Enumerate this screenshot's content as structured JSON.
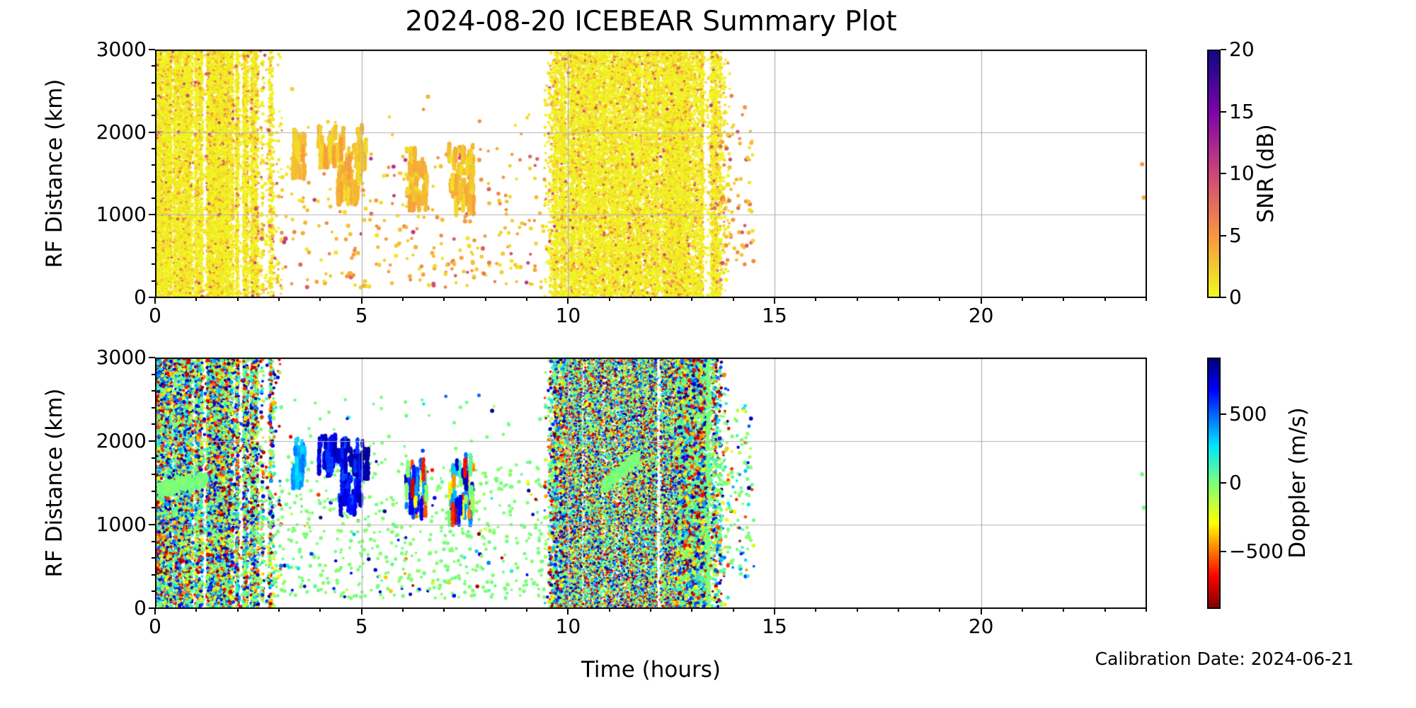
{
  "figure": {
    "title": "2024-08-20 ICEBEAR Summary Plot",
    "xlabel": "Time (hours)",
    "footnote": "Calibration Date: 2024-06-21",
    "background": "#ffffff",
    "grid_color": "#b0b0b0",
    "axis_color": "#000000"
  },
  "chart_data": {
    "type": "scatter",
    "render_seed": 1337,
    "panels": [
      {
        "id": "snr",
        "ylabel": "RF Distance (km)",
        "xlim": [
          0,
          24
        ],
        "ylim": [
          0,
          3000
        ],
        "xticks": [
          {
            "v": 0,
            "label": "0"
          },
          {
            "v": 5,
            "label": "5"
          },
          {
            "v": 10,
            "label": "10"
          },
          {
            "v": 15,
            "label": "15"
          },
          {
            "v": 20,
            "label": "20"
          }
        ],
        "yticks": [
          {
            "v": 0,
            "label": "0"
          },
          {
            "v": 1000,
            "label": "1000"
          },
          {
            "v": 2000,
            "label": "2000"
          },
          {
            "v": 3000,
            "label": "3000"
          }
        ],
        "x_minor_step": 1,
        "y_minor_step": 200,
        "grid_x": [
          5,
          10,
          15,
          20
        ],
        "grid_y": [
          1000,
          2000
        ],
        "colorbar": {
          "label": "SNR (dB)",
          "vmin": 0,
          "vmax": 20,
          "ticks": [
            {
              "v": 0,
              "label": "0"
            },
            {
              "v": 5,
              "label": "5"
            },
            {
              "v": 10,
              "label": "10"
            },
            {
              "v": 15,
              "label": "15"
            },
            {
              "v": 20,
              "label": "20"
            }
          ],
          "colormap": "plasma_r",
          "bar_css": [
            [
              "#0d0887",
              0
            ],
            [
              "#7e03a8",
              25
            ],
            [
              "#cc4778",
              50
            ],
            [
              "#f89540",
              75
            ],
            [
              "#f0f921",
              100
            ]
          ]
        }
      },
      {
        "id": "doppler",
        "ylabel": "RF Distance (km)",
        "xlim": [
          0,
          24
        ],
        "ylim": [
          0,
          3000
        ],
        "xticks": [
          {
            "v": 0,
            "label": "0"
          },
          {
            "v": 5,
            "label": "5"
          },
          {
            "v": 10,
            "label": "10"
          },
          {
            "v": 15,
            "label": "15"
          },
          {
            "v": 20,
            "label": "20"
          }
        ],
        "yticks": [
          {
            "v": 0,
            "label": "0"
          },
          {
            "v": 1000,
            "label": "1000"
          },
          {
            "v": 2000,
            "label": "2000"
          },
          {
            "v": 3000,
            "label": "3000"
          }
        ],
        "x_minor_step": 1,
        "y_minor_step": 200,
        "grid_x": [
          5,
          10,
          15,
          20
        ],
        "grid_y": [
          1000,
          2000
        ],
        "colorbar": {
          "label": "Doppler (m/s)",
          "vmin": -910,
          "vmax": 910,
          "ticks": [
            {
              "v": 500,
              "label": "500"
            },
            {
              "v": 0,
              "label": "0"
            },
            {
              "v": -500,
              "label": "−500"
            }
          ],
          "colormap": "jet_r",
          "bar_css": [
            [
              "#000080",
              0
            ],
            [
              "#0000ff",
              12.5
            ],
            [
              "#00e6ff",
              35
            ],
            [
              "#7cff79",
              50
            ],
            [
              "#ffff00",
              66
            ],
            [
              "#ff0000",
              87.5
            ],
            [
              "#800000",
              100
            ]
          ]
        }
      }
    ],
    "colormap_stops": {
      "plasma": [
        [
          0,
          [
            13,
            8,
            135
          ]
        ],
        [
          0.25,
          [
            126,
            3,
            168
          ]
        ],
        [
          0.5,
          [
            204,
            71,
            120
          ]
        ],
        [
          0.75,
          [
            248,
            149,
            64
          ]
        ],
        [
          1,
          [
            240,
            249,
            33
          ]
        ]
      ],
      "jet": [
        [
          0,
          [
            0,
            0,
            128
          ]
        ],
        [
          0.125,
          [
            0,
            0,
            255
          ]
        ],
        [
          0.35,
          [
            0,
            230,
            255
          ]
        ],
        [
          0.5,
          [
            124,
            255,
            121
          ]
        ],
        [
          0.66,
          [
            255,
            255,
            0
          ]
        ],
        [
          0.875,
          [
            255,
            0,
            0
          ]
        ],
        [
          1,
          [
            128,
            0,
            0
          ]
        ]
      ]
    },
    "regions": [
      {
        "name": "morning-noise-core",
        "kind": "band",
        "t": [
          0.05,
          1.78
        ],
        "r": [
          10,
          2990
        ],
        "n": {
          "snr": 8800,
          "doppler": 8200
        },
        "stripes": {
          "cols": 30,
          "gap": 0.16
        },
        "value": {
          "snr": "snr-noise",
          "doppler": "dop-noise"
        },
        "radius": {
          "snr": 2.1,
          "doppler": 2.2
        }
      },
      {
        "name": "morning-noise-mid",
        "kind": "band",
        "t": [
          1.78,
          2.5
        ],
        "r": [
          10,
          2990
        ],
        "n": {
          "snr": 2200,
          "doppler": 2100
        },
        "stripes": {
          "cols": 12,
          "gap": 0.3
        },
        "value": {
          "snr": "snr-noise",
          "doppler": "dop-noise"
        },
        "radius": {
          "snr": 2.1,
          "doppler": 2.2
        }
      },
      {
        "name": "morning-noise-tail",
        "kind": "band",
        "t": [
          2.5,
          3.08
        ],
        "r": [
          10,
          2990
        ],
        "n": {
          "snr": 420,
          "doppler": 430
        },
        "stripes": {
          "cols": 9,
          "gap": 0.45
        },
        "value": {
          "snr": "snr-noise",
          "doppler": "dop-noise"
        },
        "radius": {
          "snr": 2.1,
          "doppler": 2.2
        }
      },
      {
        "name": "morning-green-smear",
        "kind": "blob",
        "t": [
          0.08,
          1.25
        ],
        "r_start": 1420,
        "r_slope": 120,
        "r_sigma": 95,
        "n": {
          "snr": 0,
          "doppler": 620
        },
        "value": {
          "doppler": "dop-green"
        },
        "radius": {
          "doppler": 2.3
        }
      },
      {
        "name": "daytime-sparse-echoes",
        "kind": "scatter",
        "t": [
          2.42,
          9.6
        ],
        "r": [
          120,
          1750
        ],
        "r_hi": 2550,
        "r_pow": 1.25,
        "n": {
          "snr": 360,
          "doppler": 720
        },
        "value": {
          "snr": "snr-sparse",
          "doppler": "dop-sparse"
        },
        "radius": {
          "snr": 2.6,
          "doppler": 2.4
        }
      },
      {
        "name": "echo-streak-clusters",
        "kind": "streaks",
        "radius": {
          "snr": 2.7,
          "doppler": 2.5
        },
        "clusters": [
          {
            "t": [
              3.32,
              3.62
            ],
            "r": [
              1580,
              2060
            ],
            "strokes": 26,
            "snr": "snr-streak",
            "doppler": "dop-cyan"
          },
          {
            "t": [
              3.95,
              4.38
            ],
            "r": [
              1720,
              2090
            ],
            "strokes": 30,
            "snr": "snr-streak",
            "doppler": "dop-blue"
          },
          {
            "t": [
              4.42,
              5.02
            ],
            "r": [
              1260,
              2090
            ],
            "strokes": 60,
            "snr": "snr-streak",
            "doppler": "dop-blue"
          },
          {
            "t": [
              4.98,
              5.16
            ],
            "r": [
              1690,
              1920
            ],
            "strokes": 11,
            "snr": "snr-streak",
            "doppler": "dop-navy"
          },
          {
            "t": [
              6.08,
              6.58
            ],
            "r": [
              1200,
              1810
            ],
            "strokes": 44,
            "snr": "snr-streak",
            "doppler": "dop-mixed"
          },
          {
            "t": [
              7.12,
              7.72
            ],
            "r": [
              1140,
              1860
            ],
            "strokes": 50,
            "snr": "snr-streak",
            "doppler": "dop-mixed"
          }
        ]
      },
      {
        "name": "midday-band-left-edge",
        "kind": "band",
        "t": [
          9.42,
          10.0
        ],
        "r": [
          10,
          2990
        ],
        "n": {
          "snr": 1500,
          "doppler": 1800
        },
        "stripes": {
          "cols": 12,
          "gap": 0.28
        },
        "ramp": {
          "in": 0.58
        },
        "value": {
          "snr": "snr-noise",
          "doppler": "dop-noise"
        },
        "radius": {
          "snr": 2.1,
          "doppler": 2.2
        }
      },
      {
        "name": "midday-band-plateau-snr",
        "kind": "band",
        "t": [
          10.0,
          13.36
        ],
        "r": [
          10,
          2990
        ],
        "n": {
          "snr": 15000,
          "doppler": 0
        },
        "stripes": {
          "cols": 40,
          "gap": 0.04
        },
        "value": {
          "snr": "snr-noise"
        },
        "radius": {
          "snr": 2.0
        }
      },
      {
        "name": "midday-band-core-doppler",
        "kind": "band",
        "t": [
          9.95,
          12.62
        ],
        "r": [
          10,
          2990
        ],
        "n": {
          "snr": 0,
          "doppler": 22000
        },
        "stripes": {
          "cols": 56,
          "gap": 0.03
        },
        "value": {
          "doppler": "dop-noise"
        },
        "radius": {
          "doppler": 1.5
        }
      },
      {
        "name": "midday-band-coarse-doppler",
        "kind": "band",
        "t": [
          12.62,
          13.38
        ],
        "r": [
          10,
          2990
        ],
        "n": {
          "snr": 0,
          "doppler": 3600
        },
        "stripes": {
          "cols": 14,
          "gap": 0.12
        },
        "value": {
          "doppler": "dop-noise"
        },
        "radius": {
          "doppler": 2.4
        }
      },
      {
        "name": "midday-green-smear",
        "kind": "blob",
        "t": [
          10.85,
          11.72
        ],
        "r_start": 1450,
        "r_slope": 370,
        "r_sigma": 90,
        "n": {
          "snr": 0,
          "doppler": 650
        },
        "value": {
          "doppler": "dop-green"
        },
        "radius": {
          "doppler": 2.0
        }
      },
      {
        "name": "midday-band-right-edge",
        "kind": "band",
        "t": [
          13.36,
          13.92
        ],
        "r": [
          10,
          2990
        ],
        "n": {
          "snr": 1100,
          "doppler": 500
        },
        "stripes": {
          "cols": 11,
          "gap": 0.3
        },
        "ramp": {
          "out": 0.54
        },
        "value": {
          "snr": "snr-noise",
          "doppler": "dop-noise"
        },
        "radius": {
          "snr": 2.1,
          "doppler": 2.2
        }
      },
      {
        "name": "green-edge-column",
        "kind": "column",
        "t": [
          13.36,
          13.44
        ],
        "r": [
          10,
          2990
        ],
        "n": {
          "snr": 0,
          "doppler": 260
        },
        "value": {
          "doppler": "dop-green"
        },
        "radius": {
          "doppler": 2.2
        }
      },
      {
        "name": "post-band-sparse",
        "kind": "scatter",
        "t": [
          13.42,
          14.5
        ],
        "r": [
          380,
          2060
        ],
        "r_hi": 2450,
        "r_pow": 1.0,
        "n": {
          "snr": 95,
          "doppler": 180
        },
        "value": {
          "snr": "snr-post",
          "doppler": "dop-post"
        },
        "radius": {
          "snr": 2.6,
          "doppler": 2.4
        }
      },
      {
        "name": "isolated-late-echoes",
        "kind": "points",
        "radius": {
          "snr": 3.0,
          "doppler": 3.0
        },
        "points": {
          "snr": [
            [
              23.9,
              1612,
              5.0
            ],
            [
              23.94,
              1208,
              4.2
            ]
          ],
          "doppler": [
            [
              23.9,
              1601,
              15
            ],
            [
              23.94,
              1203,
              25
            ]
          ]
        }
      }
    ]
  }
}
